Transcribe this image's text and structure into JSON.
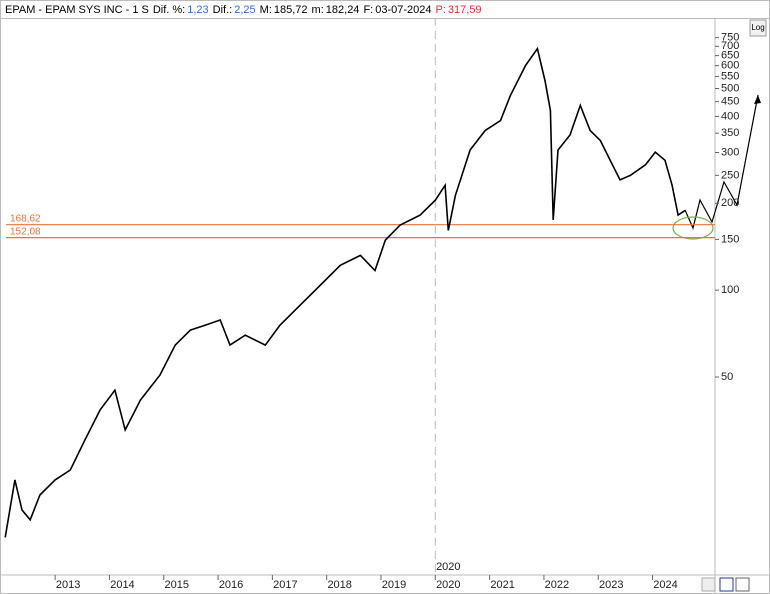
{
  "header": {
    "symbol": "EPAM - EPAM SYS INC - 1 S",
    "items": [
      {
        "label": "Dif. %:",
        "value": "1,23",
        "color": "#2a6fd6"
      },
      {
        "label": "Dif.:",
        "value": "2,25",
        "color": "#2a6fd6"
      },
      {
        "label": "M:",
        "value": "185,72",
        "color": "#000000"
      },
      {
        "label": "m:",
        "value": "182,24",
        "color": "#000000"
      },
      {
        "label": "F:",
        "value": "03-07-2024",
        "color": "#000000"
      },
      {
        "label": "P:",
        "value": "317,59",
        "color": "#e03030"
      }
    ],
    "log_button": "Log"
  },
  "chart_data": {
    "type": "line",
    "log_scale": true,
    "color": "#000000",
    "x": [
      2012.08,
      2012.26,
      2012.39,
      2012.54,
      2012.72,
      2013.0,
      2013.28,
      2013.55,
      2013.83,
      2014.1,
      2014.29,
      2014.57,
      2014.93,
      2015.21,
      2015.49,
      2015.76,
      2016.04,
      2016.22,
      2016.5,
      2016.87,
      2017.14,
      2017.51,
      2017.88,
      2018.25,
      2018.62,
      2018.89,
      2019.08,
      2019.35,
      2019.72,
      2020.0,
      2020.18,
      2020.24,
      2020.37,
      2020.64,
      2020.92,
      2021.2,
      2021.38,
      2021.66,
      2021.88,
      2022.02,
      2022.12,
      2022.17,
      2022.26,
      2022.48,
      2022.67,
      2022.85,
      2023.04,
      2023.22,
      2023.4,
      2023.59,
      2023.87,
      2024.05,
      2024.23,
      2024.36,
      2024.47,
      2024.6
    ],
    "values": [
      13.9,
      22,
      17.3,
      16,
      19.5,
      22,
      23.8,
      30.3,
      38.5,
      45,
      32.8,
      41.6,
      50.8,
      64.5,
      72.7,
      75.6,
      78.8,
      64.5,
      69.8,
      64.5,
      75.6,
      88.7,
      104,
      122,
      132,
      117,
      149,
      168,
      182,
      205,
      231,
      161,
      213,
      306,
      358,
      387,
      472,
      600,
      687,
      532,
      420,
      175,
      306,
      345,
      437,
      358,
      330,
      282,
      241,
      250,
      272,
      301,
      282,
      231,
      182,
      189
    ],
    "xlim": [
      2012.04,
      2025.15
    ],
    "xticks": [
      2013,
      2014,
      2015,
      2016,
      2017,
      2018,
      2019,
      2020,
      2021,
      2022,
      2023,
      2024
    ],
    "ylim": [
      10.3,
      850
    ],
    "yticks": [
      750,
      700,
      650,
      600,
      550,
      500,
      450,
      400,
      350,
      300,
      250,
      200,
      150,
      100,
      50
    ],
    "marker_line": 2020,
    "hlines": [
      {
        "value": 168.62,
        "label": "168,62"
      },
      {
        "value": 152.08,
        "label": "152,08"
      }
    ],
    "hline_color": "#e8743b"
  }
}
